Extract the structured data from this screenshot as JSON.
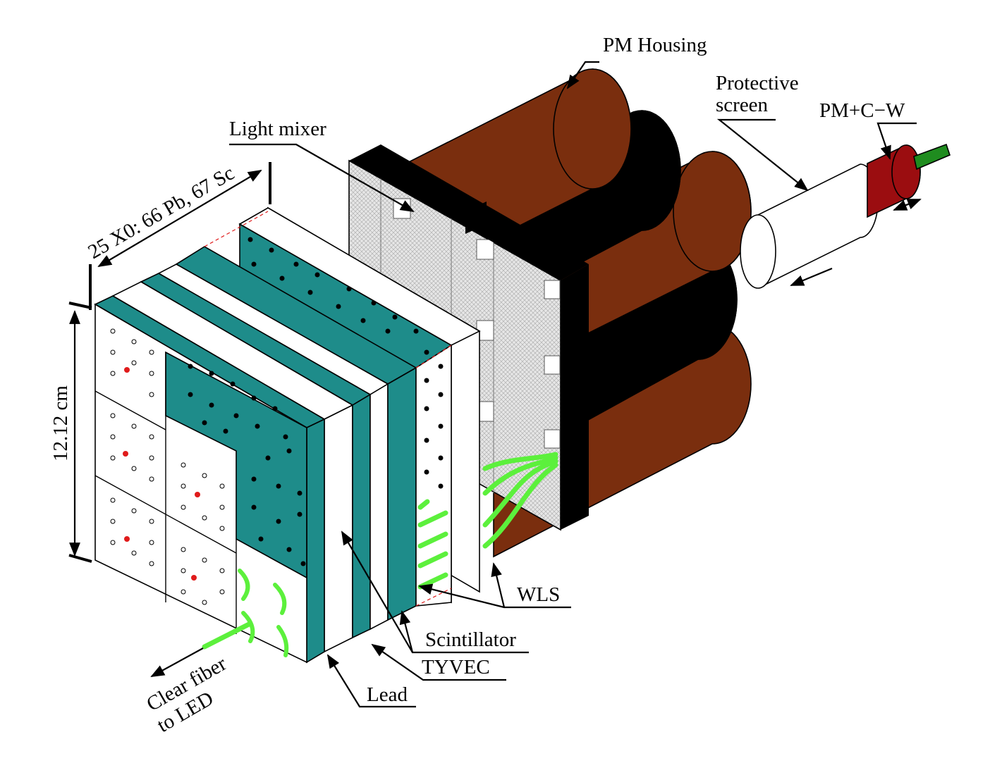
{
  "labels": {
    "pm_housing": "PM Housing",
    "protective_1": "Protective",
    "protective_2": "screen",
    "pm_cw": "PM+C−W",
    "light_mixer": "Light mixer",
    "length_dim": "25 X0: 66  Pb, 67 Sc",
    "height_dim": "12.12 cm",
    "wls": "WLS",
    "scintillator": "Scintillator",
    "tyvec": "TYVEC",
    "lead": "Lead",
    "clear_fiber_1": "Clear fiber",
    "clear_fiber_2": "to LED"
  },
  "colors": {
    "scintillator": "#1e8c8a",
    "pm_housing": "#7a2e0e",
    "pm_black": "#000000",
    "pm_cw": "#9b0d10",
    "wls_fiber": "#5cf03c",
    "pm_cable": "#1f8c1f",
    "led_hole": "#e01b1b",
    "light_mixer": "#d9d9d9"
  }
}
